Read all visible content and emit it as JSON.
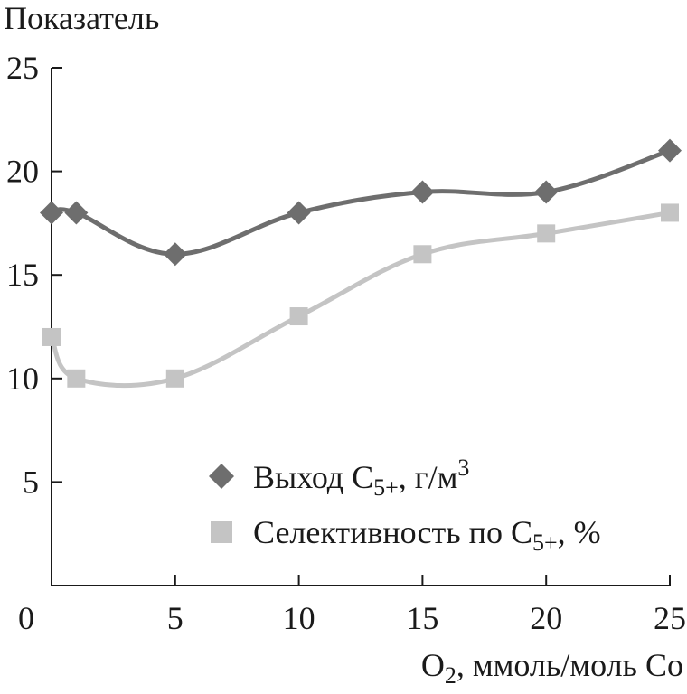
{
  "chart_data": {
    "type": "line",
    "ylabel": "Показатель",
    "xlabel_main": "O",
    "xlabel_sub": "2",
    "xlabel_rest": ", ммоль/моль Co",
    "xlim": [
      0,
      25
    ],
    "ylim": [
      0,
      25
    ],
    "x_ticks": [
      0,
      5,
      10,
      15,
      20,
      25
    ],
    "y_ticks": [
      5,
      10,
      15,
      20,
      25
    ],
    "x_tick_labels": [
      "0",
      "5",
      "10",
      "15",
      "20",
      "25"
    ],
    "y_tick_labels": [
      "5",
      "10",
      "15",
      "20",
      "25"
    ],
    "grid": false,
    "legend_position": "lower-right",
    "series": [
      {
        "name_main": "Выход C",
        "name_sub": "5+",
        "name_rest": ", г/м",
        "name_sup": "3",
        "marker": "diamond",
        "color": "#6e6e6e",
        "x": [
          0,
          1,
          5,
          10,
          15,
          20,
          25
        ],
        "values": [
          18,
          18,
          16,
          18,
          19,
          19,
          21
        ]
      },
      {
        "name_main": "Селективность по C",
        "name_sub": "5+",
        "name_rest": ", %",
        "marker": "square",
        "color": "#c4c4c4",
        "x": [
          0,
          1,
          5,
          10,
          15,
          20,
          25
        ],
        "values": [
          12,
          10,
          10,
          13,
          16,
          17,
          18
        ]
      }
    ]
  }
}
